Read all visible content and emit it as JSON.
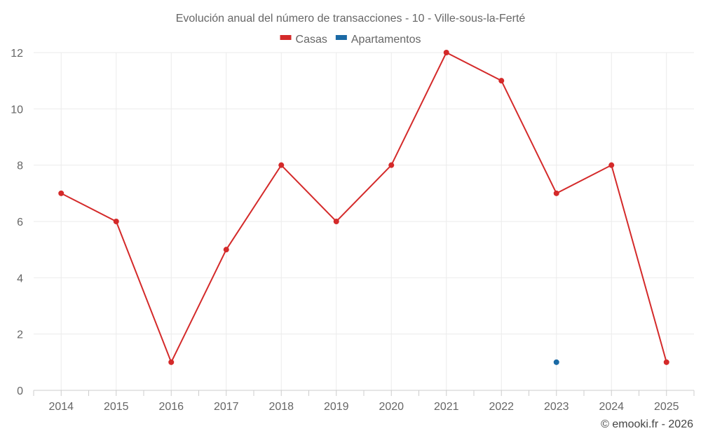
{
  "chart_data": {
    "type": "line",
    "title": "Evolución anual del número de transacciones - 10 - Ville-sous-la-Ferté",
    "categories": [
      "2014",
      "2015",
      "2016",
      "2017",
      "2018",
      "2019",
      "2020",
      "2021",
      "2022",
      "2023",
      "2024",
      "2025"
    ],
    "series": [
      {
        "name": "Casas",
        "color": "#d42a2a",
        "values": [
          7,
          6,
          1,
          5,
          8,
          6,
          8,
          12,
          11,
          7,
          8,
          1
        ]
      },
      {
        "name": "Apartamentos",
        "color": "#1b6aa5",
        "values": [
          null,
          null,
          null,
          null,
          null,
          null,
          null,
          null,
          null,
          1,
          null,
          null
        ]
      }
    ],
    "ylim": [
      0,
      12
    ],
    "yticks": [
      0,
      2,
      4,
      6,
      8,
      10,
      12
    ],
    "xlabel": "",
    "ylabel": "",
    "legend_position": "top-center",
    "grid": true,
    "credit": "© emooki.fr - 2026"
  }
}
